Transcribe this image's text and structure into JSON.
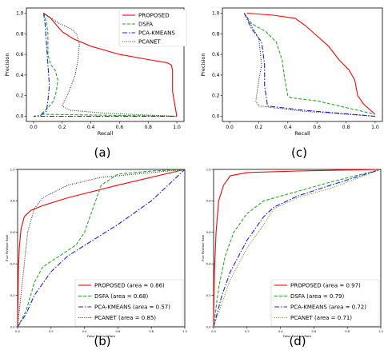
{
  "chart_data": [
    {
      "panel": "(a)",
      "type": "line",
      "xlabel": "Recall",
      "ylabel": "Precision",
      "xlim": [
        -0.05,
        1.05
      ],
      "ylim": [
        -0.05,
        1.05
      ],
      "xticks": [
        "0.0",
        "0.2",
        "0.4",
        "0.6",
        "0.8",
        "1.0"
      ],
      "yticks": [
        "0.0",
        "0.2",
        "0.4",
        "0.6",
        "0.8",
        "1.0"
      ],
      "legend": "top-right",
      "series": [
        {
          "name": "PROPOSED",
          "color": "#ff0000",
          "dash": "solid",
          "points": [
            [
              0.07,
              1.0
            ],
            [
              0.12,
              0.95
            ],
            [
              0.2,
              0.82
            ],
            [
              0.28,
              0.75
            ],
            [
              0.4,
              0.68
            ],
            [
              0.6,
              0.6
            ],
            [
              0.8,
              0.55
            ],
            [
              0.93,
              0.52
            ],
            [
              0.96,
              0.5
            ],
            [
              0.97,
              0.45
            ],
            [
              0.97,
              0.3
            ],
            [
              0.97,
              0.24
            ],
            [
              1.0,
              0.0
            ]
          ]
        },
        {
          "name": "DSFA",
          "color": "#22aa22",
          "dash": "4,2",
          "points": [
            [
              0.07,
              1.0
            ],
            [
              0.09,
              0.92
            ],
            [
              0.1,
              0.8
            ],
            [
              0.1,
              0.6
            ],
            [
              0.12,
              0.5
            ],
            [
              0.15,
              0.45
            ],
            [
              0.17,
              0.35
            ],
            [
              0.16,
              0.25
            ],
            [
              0.14,
              0.15
            ],
            [
              0.1,
              0.08
            ],
            [
              0.05,
              0.02
            ],
            [
              1.0,
              0.0
            ]
          ]
        },
        {
          "name": "PCA-KMEANS",
          "color": "#1a1aff",
          "dash": "6,2,1.5,2",
          "points": [
            [
              0.07,
              1.0
            ],
            [
              0.08,
              0.9
            ],
            [
              0.09,
              0.7
            ],
            [
              0.1,
              0.5
            ],
            [
              0.11,
              0.3
            ],
            [
              0.1,
              0.15
            ],
            [
              0.09,
              0.05
            ],
            [
              0.05,
              0.01
            ],
            [
              0.0,
              0.0
            ],
            [
              1.0,
              0.0
            ]
          ]
        },
        {
          "name": "PCANET",
          "color": "#333333",
          "dash": "1,1.5",
          "points": [
            [
              0.07,
              1.0
            ],
            [
              0.18,
              0.9
            ],
            [
              0.26,
              0.85
            ],
            [
              0.3,
              0.8
            ],
            [
              0.32,
              0.7
            ],
            [
              0.31,
              0.55
            ],
            [
              0.29,
              0.4
            ],
            [
              0.25,
              0.25
            ],
            [
              0.2,
              0.1
            ],
            [
              0.25,
              0.06
            ],
            [
              0.5,
              0.03
            ],
            [
              1.0,
              0.0
            ]
          ]
        }
      ]
    },
    {
      "panel": "(c)",
      "type": "line",
      "xlabel": "Recall",
      "ylabel": "Precision",
      "xlim": [
        -0.05,
        1.05
      ],
      "ylim": [
        -0.05,
        1.05
      ],
      "xticks": [
        "0.0",
        "0.2",
        "0.4",
        "0.6",
        "0.8",
        "1.0"
      ],
      "yticks": [
        "0.0",
        "0.2",
        "0.4",
        "0.6",
        "0.8",
        "1.0"
      ],
      "series": [
        {
          "name": "PROPOSED",
          "color": "#ff0000",
          "dash": "solid",
          "points": [
            [
              0.12,
              1.0
            ],
            [
              0.3,
              0.98
            ],
            [
              0.45,
              0.95
            ],
            [
              0.52,
              0.88
            ],
            [
              0.6,
              0.78
            ],
            [
              0.68,
              0.68
            ],
            [
              0.75,
              0.55
            ],
            [
              0.82,
              0.45
            ],
            [
              0.86,
              0.35
            ],
            [
              0.88,
              0.2
            ],
            [
              0.92,
              0.12
            ],
            [
              1.0,
              0.02
            ]
          ]
        },
        {
          "name": "DSFA",
          "color": "#22aa22",
          "dash": "4,2",
          "points": [
            [
              0.1,
              1.0
            ],
            [
              0.15,
              0.9
            ],
            [
              0.25,
              0.82
            ],
            [
              0.32,
              0.72
            ],
            [
              0.36,
              0.55
            ],
            [
              0.38,
              0.35
            ],
            [
              0.4,
              0.2
            ],
            [
              0.42,
              0.18
            ],
            [
              0.6,
              0.15
            ],
            [
              1.0,
              0.02
            ]
          ]
        },
        {
          "name": "PCA-KMEANS",
          "color": "#1a1aff",
          "dash": "6,2,1.5,2",
          "points": [
            [
              0.1,
              1.0
            ],
            [
              0.15,
              0.85
            ],
            [
              0.22,
              0.72
            ],
            [
              0.24,
              0.5
            ],
            [
              0.24,
              0.3
            ],
            [
              0.26,
              0.1
            ],
            [
              0.5,
              0.06
            ],
            [
              1.0,
              0.0
            ]
          ]
        },
        {
          "name": "PCANET",
          "color": "#333333",
          "dash": "1,1.5",
          "points": [
            [
              0.1,
              1.0
            ],
            [
              0.15,
              0.88
            ],
            [
              0.2,
              0.75
            ],
            [
              0.22,
              0.5
            ],
            [
              0.2,
              0.35
            ],
            [
              0.18,
              0.15
            ],
            [
              0.2,
              0.1
            ],
            [
              0.5,
              0.05
            ],
            [
              1.0,
              0.0
            ]
          ]
        }
      ]
    },
    {
      "panel": "(b)",
      "type": "line",
      "xlabel": "False Positive Rate",
      "ylabel": "True Positive Rate",
      "xlim": [
        0,
        1
      ],
      "ylim": [
        0,
        1
      ],
      "xticks": [
        "0.0",
        "0.2",
        "0.4",
        "0.6",
        "0.8",
        "1.0"
      ],
      "yticks": [
        "0.0",
        "0.2",
        "0.4",
        "0.6",
        "0.8",
        "1.0"
      ],
      "legend": "bottom-right",
      "series": [
        {
          "name": "PROPOSED (area = 0.86)",
          "color": "#ff0000",
          "dash": "solid",
          "points": [
            [
              0.0,
              0.0
            ],
            [
              0.005,
              0.35
            ],
            [
              0.01,
              0.5
            ],
            [
              0.02,
              0.62
            ],
            [
              0.04,
              0.7
            ],
            [
              0.08,
              0.74
            ],
            [
              0.15,
              0.77
            ],
            [
              0.3,
              0.82
            ],
            [
              0.6,
              0.9
            ],
            [
              1.0,
              1.0
            ]
          ]
        },
        {
          "name": "DSFA (area = 0.68)",
          "color": "#22aa22",
          "dash": "4,2",
          "points": [
            [
              0.0,
              0.0
            ],
            [
              0.05,
              0.1
            ],
            [
              0.1,
              0.28
            ],
            [
              0.15,
              0.38
            ],
            [
              0.25,
              0.45
            ],
            [
              0.35,
              0.52
            ],
            [
              0.4,
              0.6
            ],
            [
              0.45,
              0.75
            ],
            [
              0.5,
              0.9
            ],
            [
              0.6,
              0.97
            ],
            [
              0.8,
              0.99
            ],
            [
              1.0,
              1.0
            ]
          ]
        },
        {
          "name": "PCA-KMEANS (area = 0.57)",
          "color": "#1a1aff",
          "dash": "6,2,1.5,2",
          "points": [
            [
              0.0,
              0.0
            ],
            [
              0.05,
              0.08
            ],
            [
              0.1,
              0.2
            ],
            [
              0.2,
              0.35
            ],
            [
              0.3,
              0.45
            ],
            [
              0.45,
              0.55
            ],
            [
              0.6,
              0.65
            ],
            [
              0.8,
              0.8
            ],
            [
              1.0,
              1.0
            ]
          ]
        },
        {
          "name": "PCANET (area = 0.85)",
          "color": "#333333",
          "dash": "1,1.5",
          "points": [
            [
              0.0,
              0.0
            ],
            [
              0.03,
              0.3
            ],
            [
              0.06,
              0.6
            ],
            [
              0.1,
              0.75
            ],
            [
              0.15,
              0.82
            ],
            [
              0.3,
              0.9
            ],
            [
              0.5,
              0.95
            ],
            [
              1.0,
              1.0
            ]
          ]
        }
      ]
    },
    {
      "panel": "(d)",
      "type": "line",
      "xlabel": "False Positive Rate",
      "ylabel": "True Positive Rate",
      "xlim": [
        0,
        1
      ],
      "ylim": [
        0,
        1
      ],
      "xticks": [
        "0.0",
        "0.2",
        "0.4",
        "0.6",
        "0.8",
        "1.0"
      ],
      "yticks": [
        "0.0",
        "0.2",
        "0.4",
        "0.6",
        "0.8",
        "1.0"
      ],
      "legend": "bottom-right",
      "series": [
        {
          "name": "PROPOSED (area = 0.97)",
          "color": "#ff0000",
          "dash": "solid",
          "points": [
            [
              0.0,
              0.0
            ],
            [
              0.005,
              0.35
            ],
            [
              0.015,
              0.6
            ],
            [
              0.03,
              0.8
            ],
            [
              0.06,
              0.9
            ],
            [
              0.1,
              0.96
            ],
            [
              0.2,
              0.98
            ],
            [
              0.5,
              0.99
            ],
            [
              1.0,
              1.0
            ]
          ]
        },
        {
          "name": "DSFA (area = 0.79)",
          "color": "#22aa22",
          "dash": "4,2",
          "points": [
            [
              0.0,
              0.0
            ],
            [
              0.03,
              0.25
            ],
            [
              0.07,
              0.45
            ],
            [
              0.12,
              0.6
            ],
            [
              0.2,
              0.72
            ],
            [
              0.3,
              0.8
            ],
            [
              0.5,
              0.86
            ],
            [
              0.7,
              0.92
            ],
            [
              1.0,
              1.0
            ]
          ]
        },
        {
          "name": "PCA-KMEANS (area = 0.72)",
          "color": "#1a1aff",
          "dash": "6,2,1.5,2",
          "points": [
            [
              0.0,
              0.0
            ],
            [
              0.05,
              0.2
            ],
            [
              0.1,
              0.35
            ],
            [
              0.2,
              0.55
            ],
            [
              0.3,
              0.7
            ],
            [
              0.36,
              0.76
            ],
            [
              0.5,
              0.83
            ],
            [
              0.7,
              0.9
            ],
            [
              1.0,
              1.0
            ]
          ]
        },
        {
          "name": "PCANET (area = 0.71)",
          "color": "#8a8a3a",
          "dash": "1,1.5",
          "points": [
            [
              0.0,
              0.0
            ],
            [
              0.05,
              0.15
            ],
            [
              0.1,
              0.3
            ],
            [
              0.2,
              0.5
            ],
            [
              0.3,
              0.65
            ],
            [
              0.36,
              0.75
            ],
            [
              0.5,
              0.82
            ],
            [
              0.7,
              0.88
            ],
            [
              1.0,
              1.0
            ]
          ]
        }
      ]
    }
  ]
}
